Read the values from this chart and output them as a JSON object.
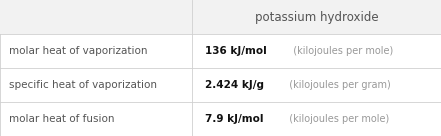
{
  "title": "potassium hydroxide",
  "rows": [
    {
      "label": "molar heat of vaporization",
      "value_bold": "136 kJ/mol",
      "value_light": "  (kilojoules per mole)"
    },
    {
      "label": "specific heat of vaporization",
      "value_bold": "2.424 kJ/g",
      "value_light": "  (kilojoules per gram)"
    },
    {
      "label": "molar heat of fusion",
      "value_bold": "7.9 kJ/mol",
      "value_light": "  (kilojoules per mole)"
    }
  ],
  "bg_color": "#ffffff",
  "header_bg": "#f2f2f2",
  "line_color": "#d0d0d0",
  "label_color": "#555555",
  "value_bold_color": "#111111",
  "value_light_color": "#999999",
  "title_color": "#555555",
  "col_split": 0.435,
  "font_size_title": 8.5,
  "font_size_label": 7.5,
  "font_size_value_bold": 7.5,
  "font_size_value_light": 7.0
}
